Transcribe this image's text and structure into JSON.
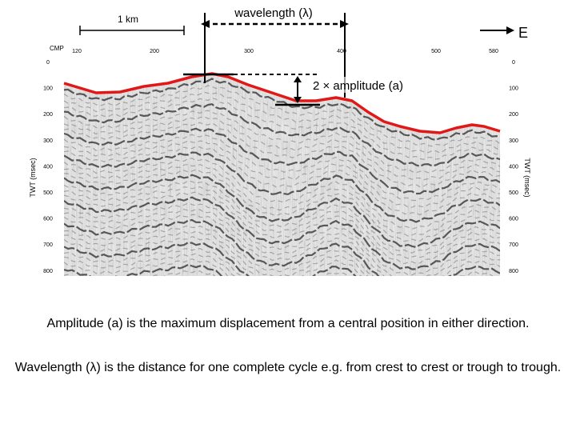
{
  "scale_bar": {
    "label": "1 km"
  },
  "wavelength_label": "wavelength (λ)",
  "amplitude_label": "2 × amplitude (a)",
  "direction": {
    "label": "E"
  },
  "cmp": {
    "label": "CMP",
    "ticks": [
      "120",
      "200",
      "300",
      "400",
      "500",
      "580"
    ]
  },
  "twt_axis": {
    "label": "TWT (msec)",
    "ticks": [
      "0",
      "100",
      "200",
      "300",
      "400",
      "500",
      "600",
      "700",
      "800"
    ]
  },
  "colors": {
    "horizon": "#e01818",
    "frame": "#000000",
    "section_background": "#e6e6e6"
  },
  "captions": {
    "amplitude": "Amplitude (a) is the maximum displacement from a central position in either direction.",
    "wavelength": "Wavelength (λ) is the distance for one complete cycle e.g. from crest to crest or trough to trough."
  }
}
